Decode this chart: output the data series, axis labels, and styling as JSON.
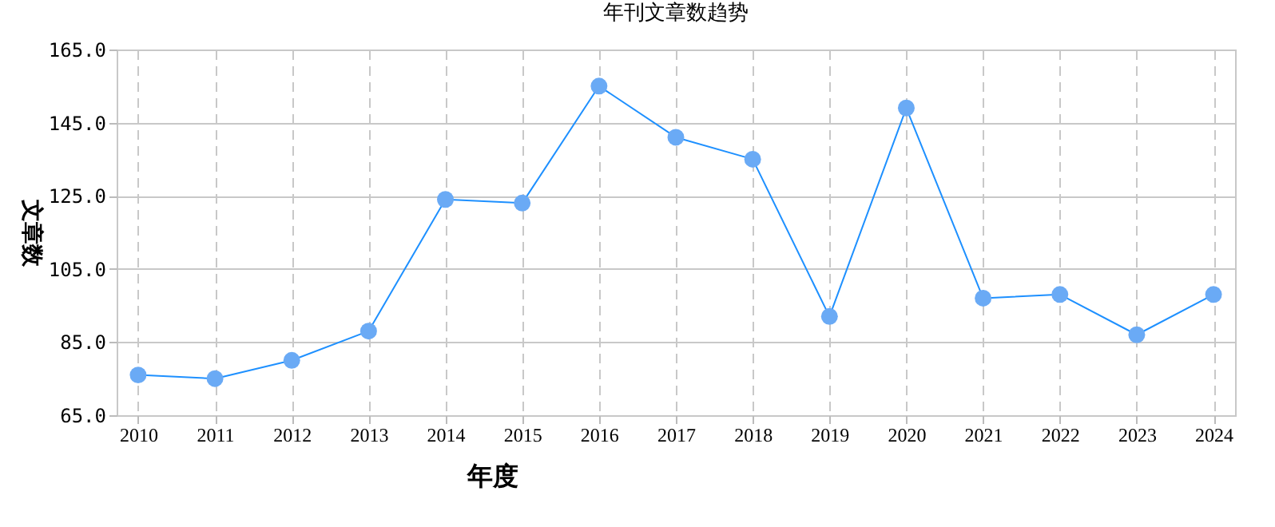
{
  "chart_data": {
    "type": "line",
    "title": "年刊文章数趋势",
    "xlabel": "年度",
    "ylabel": "文章数",
    "categories": [
      "2010",
      "2011",
      "2012",
      "2013",
      "2014",
      "2015",
      "2016",
      "2017",
      "2018",
      "2019",
      "2020",
      "2021",
      "2022",
      "2023",
      "2024"
    ],
    "series": [
      {
        "color": "#1e90ff",
        "values": [
          76,
          75,
          80,
          88,
          124,
          123,
          155,
          141,
          135,
          92,
          149,
          97,
          98,
          87,
          98
        ]
      }
    ],
    "ylim": [
      65,
      165
    ],
    "yticks": [
      {
        "value": 65,
        "label": "65.0"
      },
      {
        "value": 85,
        "label": "85.0"
      },
      {
        "value": 105,
        "label": "105.0"
      },
      {
        "value": 125,
        "label": "125.0"
      },
      {
        "value": 145,
        "label": "145.0"
      },
      {
        "value": 165,
        "label": "165.0"
      }
    ],
    "grid": true,
    "marker": "circle",
    "line_style": "solid"
  }
}
